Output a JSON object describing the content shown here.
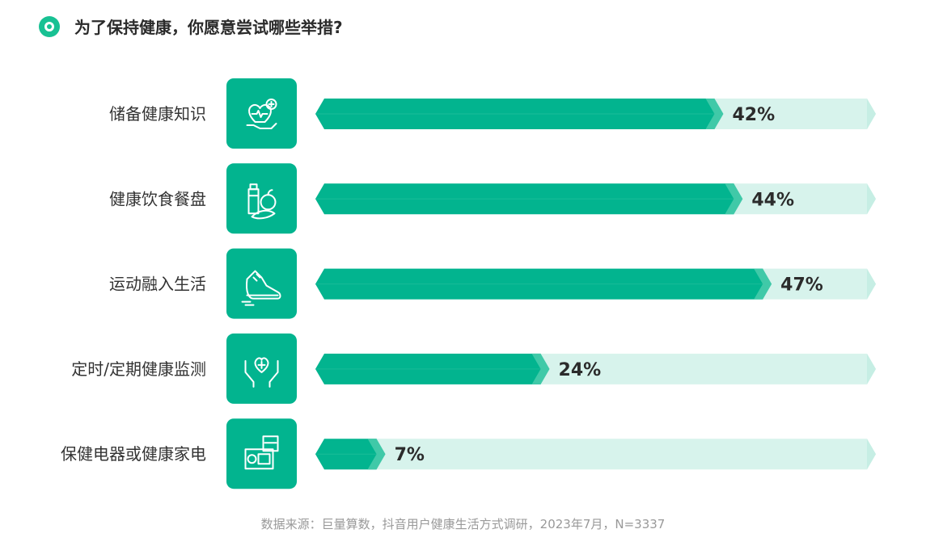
{
  "title": "为了保持健康，你愿意尝试哪些举措?",
  "source": "数据来源：巨量算数，抖音用户健康生活方式调研，2023年7月，N=3337",
  "colors": {
    "fill": "#02b48f",
    "fill_tip": "#40c9a8",
    "track": "#d7f3ec",
    "track_tip": "#c6eee4",
    "icon_bg": "#02b48f",
    "label": "#333333"
  },
  "chart_data": {
    "type": "bar",
    "orientation": "horizontal",
    "categories": [
      "储备健康知识",
      "健康饮食餐盘",
      "运动融入生活",
      "定时/定期健康监测",
      "保健电器或健康家电"
    ],
    "values": [
      42,
      44,
      47,
      24,
      7
    ],
    "value_labels": [
      "42%",
      "44%",
      "47%",
      "24%",
      "7%"
    ],
    "icons": [
      "heart-hand-icon",
      "food-icon",
      "sneaker-icon",
      "heart-cross-hands-icon",
      "appliance-icon"
    ],
    "unit": "%"
  }
}
